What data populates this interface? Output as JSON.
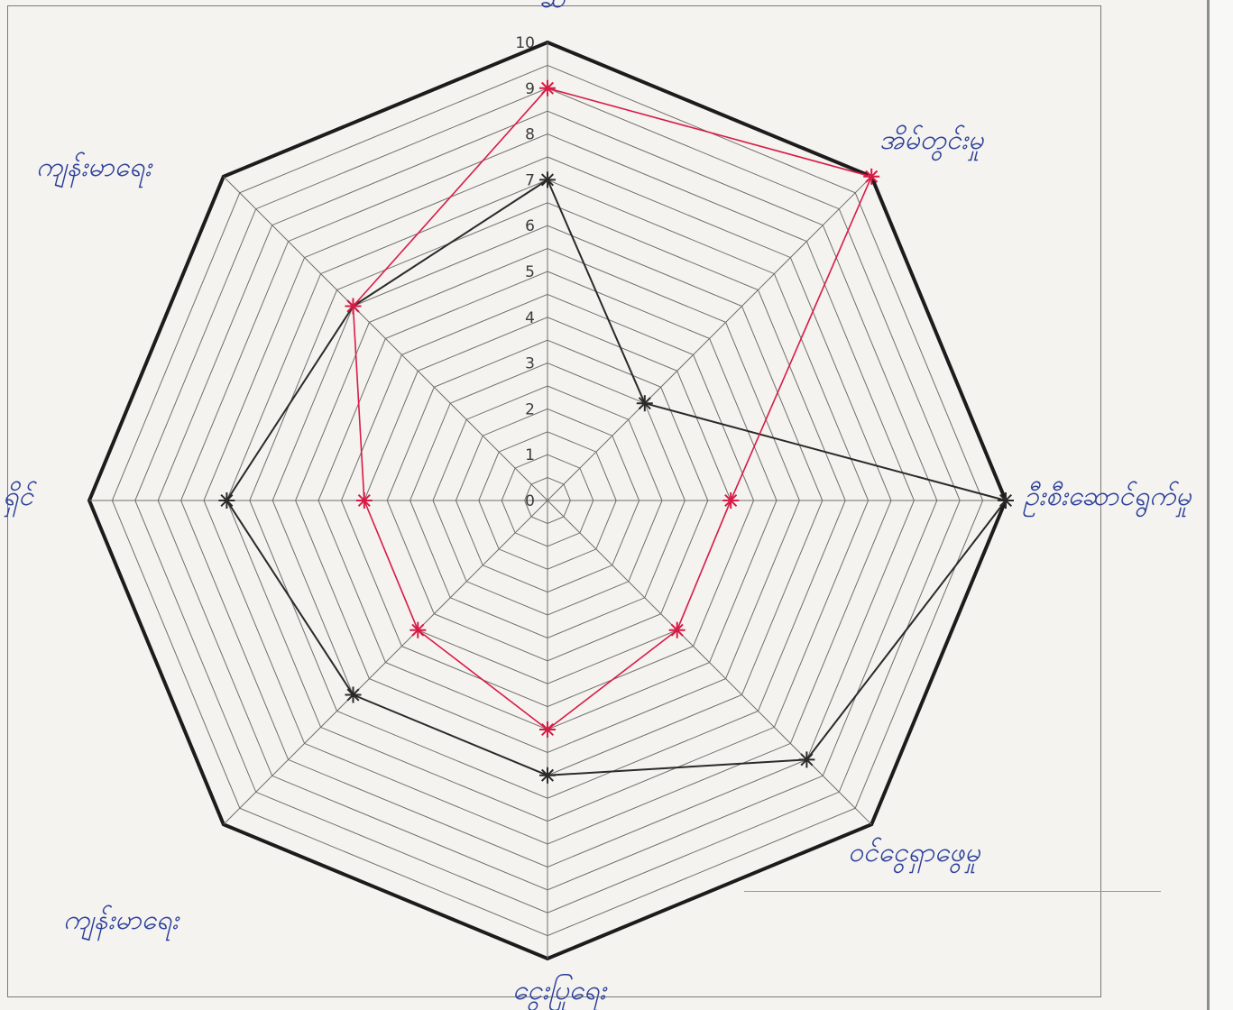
{
  "chart_data": {
    "type": "radar",
    "title": "",
    "categories": [
      "ဆ",
      "အိမ်တွင်းမှု",
      "ဦးစီးဆောင်ရွက်မှု",
      "ဝင်ငွေရှာဖွေမှု",
      "ငွေးပြုရေး",
      "ကျန်းမာရေး",
      "ရှိင်",
      "ကျန်းမာရေး"
    ],
    "category_labels_displayed": [
      "ဆ",
      "အိမ်တွင်းမှု",
      "ဦးစီးဆောင်ရွက်မှု",
      "ဝင်ငွေရှာဖွေမှု",
      "ငွေးပြုရေး",
      "ကျန်းမာရေး",
      "ရှိင်",
      "ကျန်းမာရေး"
    ],
    "r_ticks": [
      "0",
      "1",
      "2",
      "3",
      "4",
      "5",
      "6",
      "7",
      "8",
      "9",
      "10"
    ],
    "r_range": [
      0,
      10
    ],
    "series": [
      {
        "name": "",
        "color": "#2a2a2a",
        "values": [
          7,
          3,
          10,
          8,
          6,
          6,
          7,
          6
        ]
      },
      {
        "name": "",
        "color": "#d81b46",
        "values": [
          9,
          10,
          4,
          4,
          5,
          4,
          4,
          6
        ]
      }
    ],
    "grid": true,
    "legend": "none"
  }
}
